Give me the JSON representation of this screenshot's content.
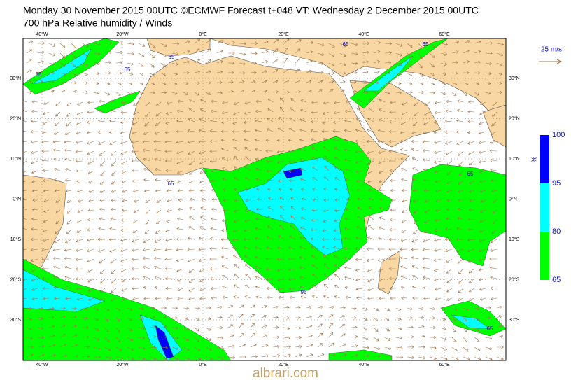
{
  "header": {
    "title": "Monday 30 November 2015 00UTC ©ECMWF Forecast t+048 VT: Wednesday 2 December 2015 00UTC",
    "subtitle": "700 hPa Relative humidity / Winds"
  },
  "map": {
    "longitude_labels": [
      "40°W",
      "20°W",
      "0°E",
      "20°E",
      "40°E",
      "60°E"
    ],
    "latitude_labels": [
      "30°N",
      "20°N",
      "10°N",
      "0°N",
      "10°S",
      "20°S",
      "30°S"
    ],
    "contour_labels": [
      "65",
      "65",
      "65",
      "65",
      "65",
      "65",
      "65",
      "65",
      "95"
    ]
  },
  "wind_key": {
    "label": "25 m/s"
  },
  "colorbar": {
    "unit": "%",
    "levels": [
      65,
      80,
      95,
      100
    ],
    "colors": [
      "#00ff00",
      "#00ffff",
      "#0000ff"
    ]
  },
  "watermark": "albrari.com"
}
